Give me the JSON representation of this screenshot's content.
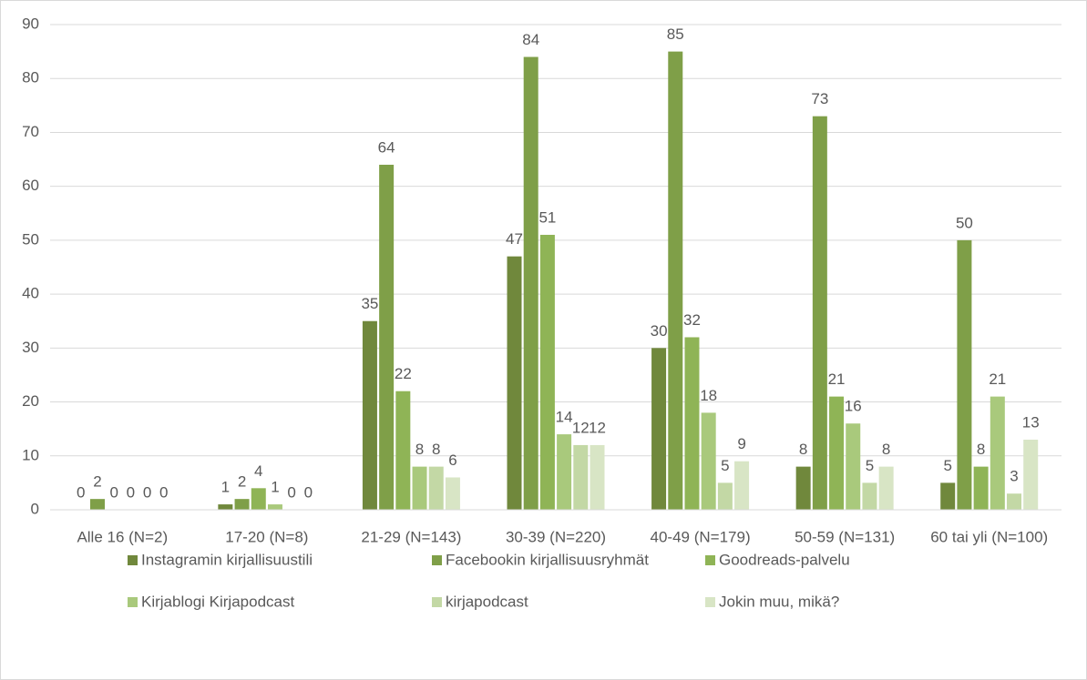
{
  "chart_data": {
    "type": "bar",
    "categories": [
      "Alle 16 (N=2)",
      "17-20 (N=8)",
      "21-29 (N=143)",
      "30-39 (N=220)",
      "40-49 (N=179)",
      "50-59 (N=131)",
      "60 tai yli (N=100)"
    ],
    "series": [
      {
        "name": "Instagramin kirjallisuustili",
        "color": "#70883c",
        "values": [
          0,
          1,
          35,
          47,
          30,
          8,
          5
        ]
      },
      {
        "name": "Facebookin kirjallisuusryhmät",
        "color": "#7f9f48",
        "values": [
          2,
          2,
          64,
          84,
          85,
          73,
          50
        ]
      },
      {
        "name": "Goodreads-palvelu",
        "color": "#8fb456",
        "values": [
          0,
          4,
          22,
          51,
          32,
          21,
          8
        ]
      },
      {
        "name": "Kirjablogi Kirjapodcast",
        "color": "#a9c97c",
        "values": [
          0,
          1,
          8,
          14,
          18,
          16,
          21
        ]
      },
      {
        "name": "kirjapodcast",
        "color": "#c3d8a5",
        "values": [
          0,
          0,
          8,
          12,
          5,
          5,
          3
        ]
      },
      {
        "name": "Jokin muu, mikä?",
        "color": "#d8e5c5",
        "values": [
          0,
          0,
          6,
          12,
          9,
          8,
          13
        ]
      }
    ],
    "ylim": [
      0,
      90
    ],
    "yticks": [
      0,
      10,
      20,
      30,
      40,
      50,
      60,
      70,
      80,
      90
    ],
    "grid": true,
    "legend": "bottom"
  }
}
